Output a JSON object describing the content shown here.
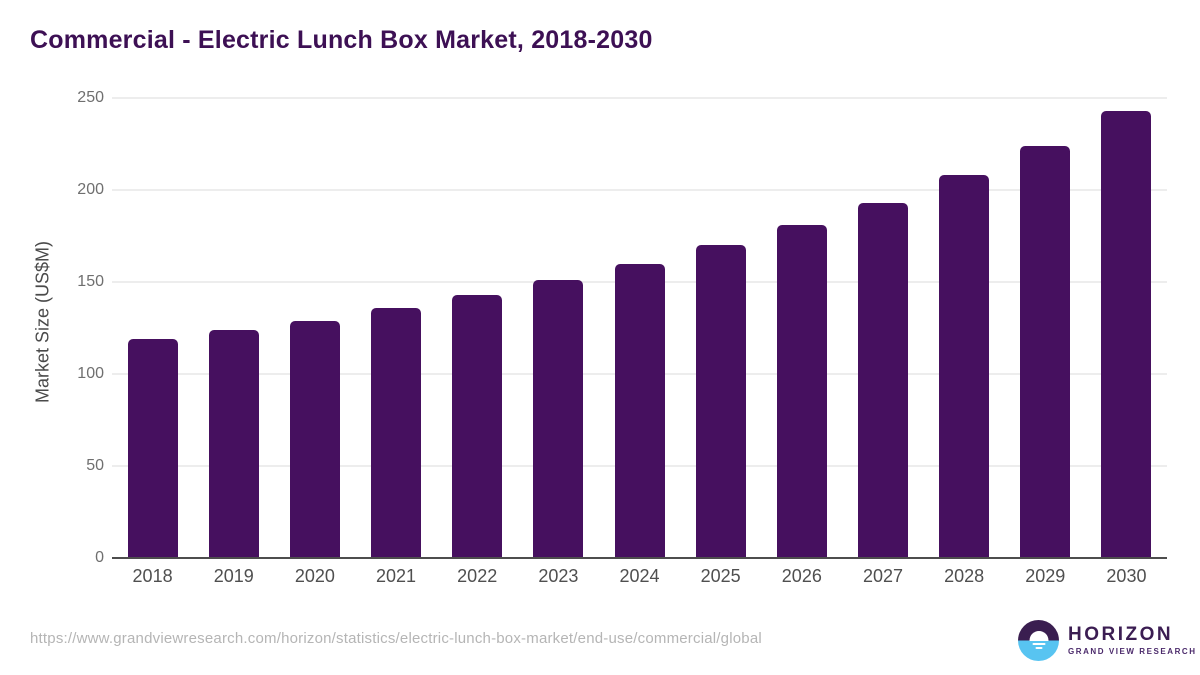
{
  "header": {
    "title": "Commercial - Electric Lunch Box Market, 2018-2030"
  },
  "chart_data": {
    "type": "bar",
    "title": "Commercial - Electric Lunch Box Market, 2018-2030",
    "categories": [
      "2018",
      "2019",
      "2020",
      "2021",
      "2022",
      "2023",
      "2024",
      "2025",
      "2026",
      "2027",
      "2028",
      "2029",
      "2030"
    ],
    "values": [
      119,
      124,
      129,
      136,
      143,
      151,
      160,
      170,
      181,
      193,
      208,
      224,
      243
    ],
    "xlabel": "",
    "ylabel": "Market Size (US$M)",
    "ylim": [
      0,
      250
    ],
    "yticks": [
      0,
      50,
      100,
      150,
      200,
      250
    ],
    "grid": true,
    "legend": "none",
    "bar_color": "#46105f"
  },
  "footer": {
    "source_url": "https://www.grandviewresearch.com/horizon/statistics/electric-lunch-box-market/end-use/commercial/global"
  },
  "logo": {
    "name": "HORIZON",
    "subtitle": "GRAND VIEW RESEARCH"
  },
  "colors": {
    "title": "#3d1054",
    "bar": "#46105f",
    "gridline": "#ededed",
    "axis_line": "#4d4d4d",
    "y_tick": "#6f6f6f",
    "x_label": "#4f4f4f",
    "url": "#b5b5b5",
    "logo_purple": "#3a1e50",
    "logo_blue": "#58c4f1"
  }
}
